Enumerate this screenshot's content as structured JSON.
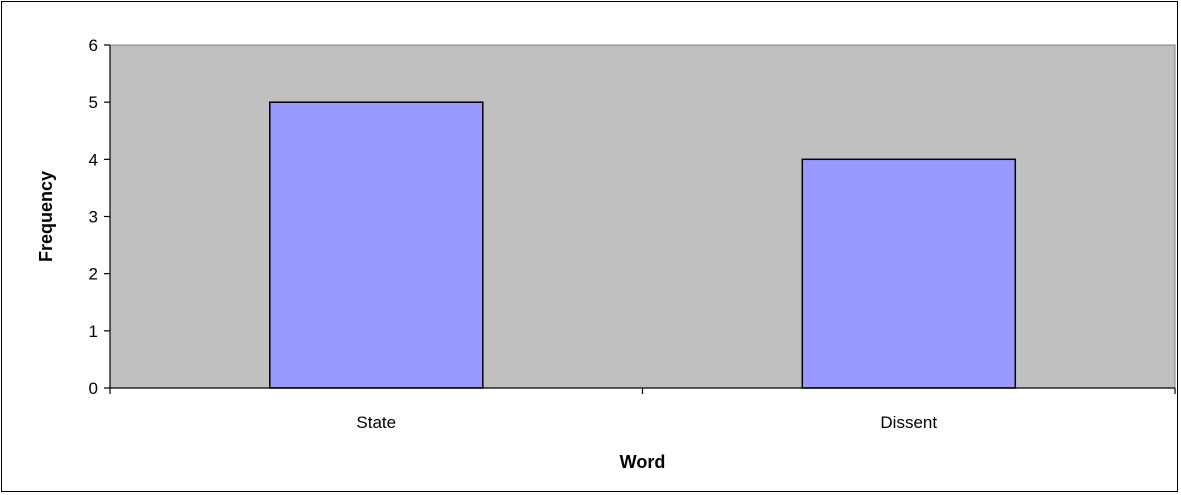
{
  "chart_data": {
    "type": "bar",
    "categories": [
      "State",
      "Dissent"
    ],
    "values": [
      5,
      4
    ],
    "title": "",
    "xlabel": "Word",
    "ylabel": "Frequency",
    "ylim": [
      0,
      6
    ],
    "yticks": [
      0,
      1,
      2,
      3,
      4,
      5,
      6
    ],
    "grid": false,
    "legend": "none",
    "colors": {
      "bar_fill": "#9999ff",
      "bar_stroke": "#000000",
      "plot_background": "#c0c0c0",
      "axis": "#000000"
    }
  }
}
